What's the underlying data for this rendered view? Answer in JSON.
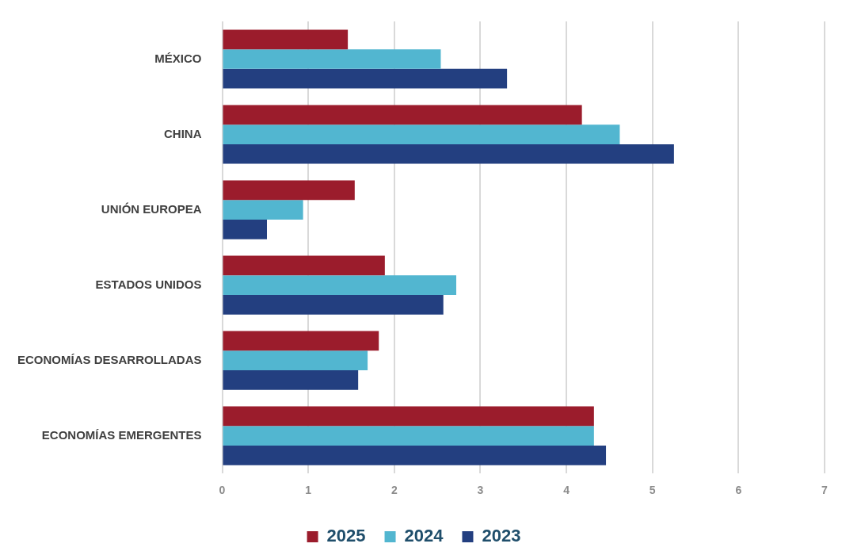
{
  "chart_data": {
    "type": "bar",
    "orientation": "horizontal",
    "categories": [
      "MÉXICO",
      "CHINA",
      "UNIÓN EUROPEA",
      "ESTADOS UNIDOS",
      "ECONOMÍAS DESARROLLADAS",
      "ECONOMÍAS EMERGENTES"
    ],
    "series": [
      {
        "name": "2025",
        "color": "#9b1c2c",
        "values": [
          1.46,
          4.18,
          1.54,
          1.89,
          1.82,
          4.32
        ]
      },
      {
        "name": "2024",
        "color": "#52b6d0",
        "values": [
          2.54,
          4.62,
          0.94,
          2.72,
          1.69,
          4.32
        ]
      },
      {
        "name": "2023",
        "color": "#233f80",
        "values": [
          3.31,
          5.25,
          0.52,
          2.57,
          1.58,
          4.46
        ]
      }
    ],
    "xlim": [
      0,
      7
    ],
    "xticks": [
      0,
      1,
      2,
      3,
      4,
      5,
      6,
      7
    ],
    "grid": "x",
    "legend": "bottom"
  }
}
